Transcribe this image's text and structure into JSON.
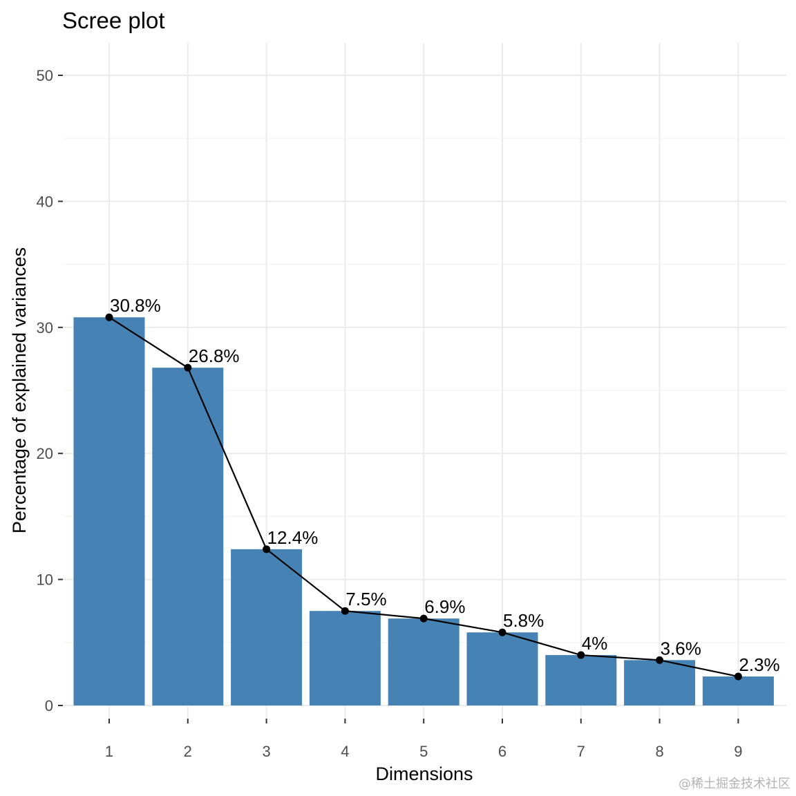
{
  "chart_data": {
    "type": "bar",
    "title": "Scree plot",
    "xlabel": "Dimensions",
    "ylabel": "Percentage of explained variances",
    "categories": [
      "1",
      "2",
      "3",
      "4",
      "5",
      "6",
      "7",
      "8",
      "9"
    ],
    "values": [
      30.8,
      26.8,
      12.4,
      7.5,
      6.9,
      5.8,
      4.0,
      3.6,
      2.3
    ],
    "data_labels": [
      "30.8%",
      "26.8%",
      "12.4%",
      "7.5%",
      "6.9%",
      "5.8%",
      "4%",
      "3.6%",
      "2.3%"
    ],
    "overlay": "line-with-points",
    "ylim": [
      0,
      52.5
    ],
    "yticks": [
      0,
      10,
      20,
      30,
      40,
      50
    ],
    "grid": true,
    "legend": "none",
    "bar_color": "#4682b4",
    "line_color": "#000000"
  },
  "watermark": "@稀土掘金技术社区"
}
